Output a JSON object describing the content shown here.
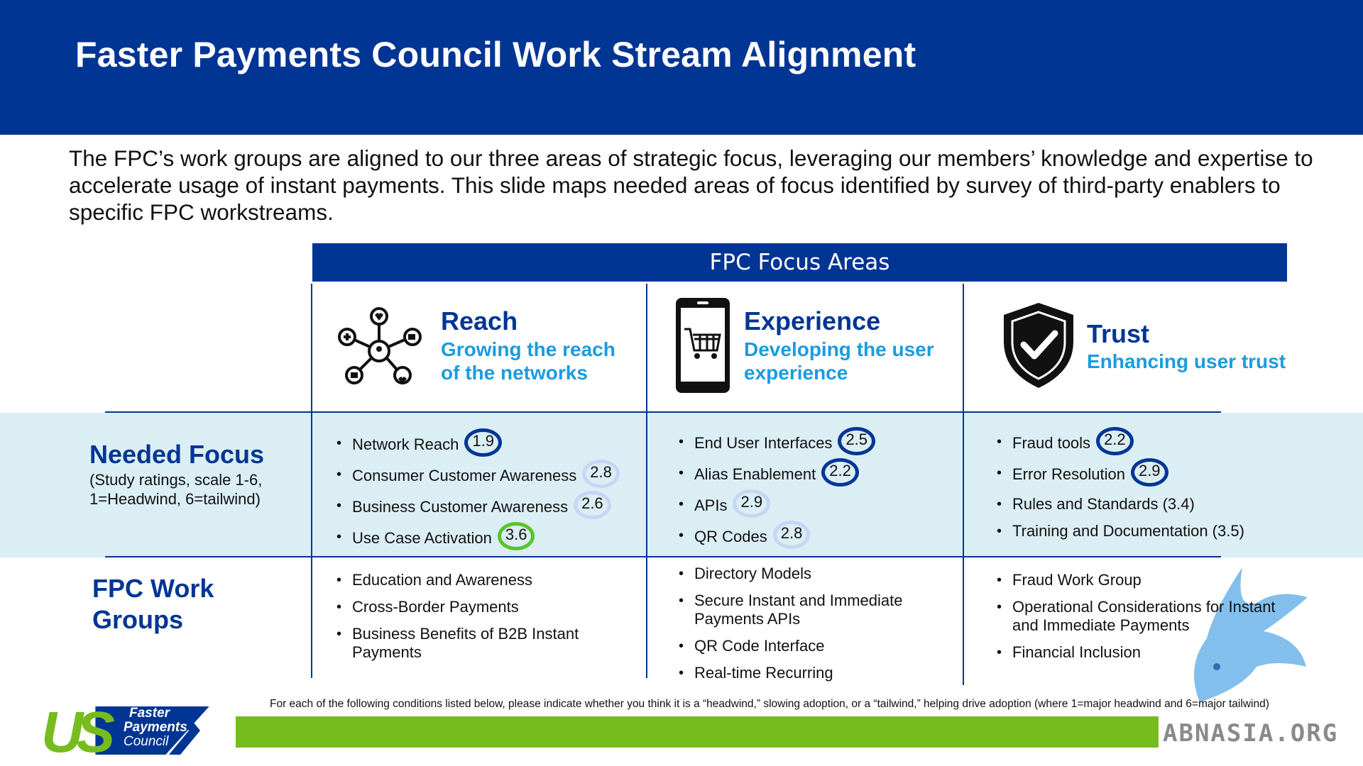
{
  "title": "Faster Payments Council Work Stream Alignment",
  "intro": "The FPC’s work groups are aligned to our three areas of strategic focus, leveraging our members’ knowledge and expertise to accelerate usage of instant payments.  This slide maps needed areas of focus identified by survey of third-party enablers to specific FPC workstreams.",
  "focus_header": "FPC Focus Areas",
  "areas": [
    {
      "title": "Reach",
      "subtitle_1": "Growing the reach",
      "subtitle_2": "of the networks",
      "icon": "network-icon"
    },
    {
      "title": "Experience",
      "subtitle_1": "Developing the user",
      "subtitle_2": "experience",
      "icon": "smartphone-cart-icon"
    },
    {
      "title": "Trust",
      "subtitle_1": "Enhancing user trust",
      "icon": "shield-check-icon"
    }
  ],
  "needed_focus": {
    "title": "Needed Focus",
    "note_1": "(Study ratings, scale 1-6,",
    "note_2": "1=Headwind, 6=tailwind)",
    "reach": [
      {
        "label": "Network Reach",
        "rating": "1.9"
      },
      {
        "label": "Consumer Customer Awareness",
        "rating": "2.8"
      },
      {
        "label": "Business Customer Awareness",
        "rating": "2.6"
      },
      {
        "label": "Use Case Activation",
        "rating": "3.6"
      }
    ],
    "experience": [
      {
        "label": "End User Interfaces",
        "rating": "2.5"
      },
      {
        "label": "Alias Enablement",
        "rating": "2.2"
      },
      {
        "label": "APIs",
        "rating": "2.9"
      },
      {
        "label": "QR Codes",
        "rating": "2.8"
      }
    ],
    "trust": [
      {
        "label": "Fraud tools",
        "rating": "2.2"
      },
      {
        "label": "Error Resolution",
        "rating": "2.9"
      },
      {
        "label": "Rules and Standards (3.4)"
      },
      {
        "label": "Training and Documentation (3.5)"
      }
    ]
  },
  "work_groups": {
    "title_1": "FPC Work",
    "title_2": "Groups",
    "reach": [
      "Education and Awareness",
      "Cross-Border Payments",
      "Business Benefits of B2B Instant Payments"
    ],
    "experience": [
      "Directory Models",
      "Secure Instant and Immediate Payments APIs",
      "QR Code Interface",
      "Real-time Recurring"
    ],
    "trust": [
      "Fraud Work Group",
      "Operational Considerations for Instant and Immediate Payments",
      "Financial Inclusion"
    ]
  },
  "logo": {
    "mark": "US",
    "line_1": "Faster",
    "line_2": "Payments",
    "line_3": "Council"
  },
  "footnote": "For each of the following conditions listed below, please indicate whether you think it is a “headwind,” slowing adoption, or a “tailwind,” helping drive adoption (where 1=major headwind and 6=major tailwind)",
  "watermark": "ABNASIA.ORG",
  "colors": {
    "navy": "#003594",
    "light_blue": "#1b9be0",
    "band": "#dbeef3",
    "green": "#77bc1f",
    "rating_green": "#55c629"
  }
}
